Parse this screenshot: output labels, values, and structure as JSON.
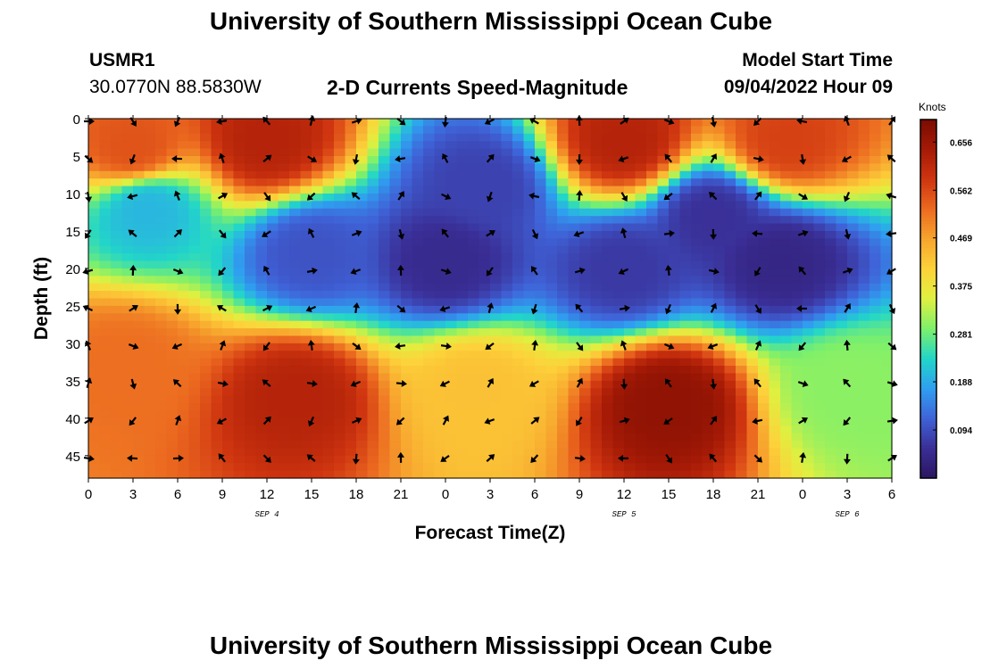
{
  "header": {
    "title": "University of Southern Mississippi Ocean Cube",
    "station_id": "USMR1",
    "station_coords": "30.0770N  88.5830W",
    "plot_title": "2-D Currents Speed-Magnitude",
    "model_start_label": "Model Start Time",
    "model_start_value": "09/04/2022 Hour 09"
  },
  "footer": {
    "title": "University of Southern Mississippi Ocean Cube"
  },
  "chart_data": {
    "type": "heatmap",
    "title": "2-D Currents Speed-Magnitude",
    "xlabel": "Forecast Time(Z)",
    "ylabel": "Depth (ft)",
    "x_tick_labels": [
      "0",
      "3",
      "6",
      "9",
      "12",
      "15",
      "18",
      "21",
      "0",
      "3",
      "6",
      "9",
      "12",
      "15",
      "18",
      "21",
      "0",
      "3",
      "6"
    ],
    "x_range_hours": [
      0,
      54
    ],
    "date_labels": [
      {
        "text": "SEP 4",
        "hour": 12
      },
      {
        "text": "SEP 5",
        "hour": 36
      },
      {
        "text": "SEP 6",
        "hour": 51
      }
    ],
    "y_ticks": [
      0,
      5,
      10,
      15,
      20,
      25,
      30,
      35,
      40,
      45
    ],
    "y_range": [
      0,
      48
    ],
    "colorbar": {
      "unit": "Knots",
      "min": 0.0,
      "max": 0.7,
      "tick_labels": [
        "0.656",
        "0.562",
        "0.469",
        "0.375",
        "0.281",
        "0.188",
        "0.094"
      ],
      "colors": [
        "#2b1660",
        "#3a2e96",
        "#3f63d8",
        "#2f9ff0",
        "#22d6c8",
        "#7ef06a",
        "#e0f040",
        "#fdd23a",
        "#f7a52e",
        "#ec6a20",
        "#cf3510",
        "#a51a06",
        "#7a0c02"
      ]
    },
    "speed_features": [
      {
        "hour": 12,
        "depth": 3,
        "speed": 0.62
      },
      {
        "hour": 3,
        "depth": 4,
        "speed": 0.55
      },
      {
        "hour": 36,
        "depth": 3,
        "speed": 0.62
      },
      {
        "hour": 47,
        "depth": 3,
        "speed": 0.57
      },
      {
        "hour": 14,
        "depth": 37,
        "speed": 0.62
      },
      {
        "hour": 39,
        "depth": 38,
        "speed": 0.67
      },
      {
        "hour": 2.5,
        "depth": 33,
        "speed": 0.52
      },
      {
        "hour": 26,
        "depth": 36,
        "speed": 0.43
      },
      {
        "hour": 51,
        "depth": 36,
        "speed": 0.3
      },
      {
        "hour": 24,
        "depth": 19,
        "speed": 0.05
      },
      {
        "hour": 46.5,
        "depth": 19,
        "speed": 0.04
      },
      {
        "hour": 42,
        "depth": 13,
        "speed": 0.06
      },
      {
        "hour": 36,
        "depth": 20,
        "speed": 0.07
      },
      {
        "hour": 26.5,
        "depth": 9,
        "speed": 0.08
      },
      {
        "hour": 15,
        "depth": 18,
        "speed": 0.1
      },
      {
        "hour": 4,
        "depth": 12,
        "speed": 0.2
      }
    ],
    "vector_hours": [
      0,
      3,
      6,
      9,
      12,
      15,
      18,
      21,
      24,
      27,
      30,
      33,
      36,
      39,
      42,
      45,
      48,
      51,
      54
    ],
    "vector_depths": [
      0,
      5,
      10,
      15,
      20,
      25,
      30,
      35,
      40,
      45
    ]
  }
}
